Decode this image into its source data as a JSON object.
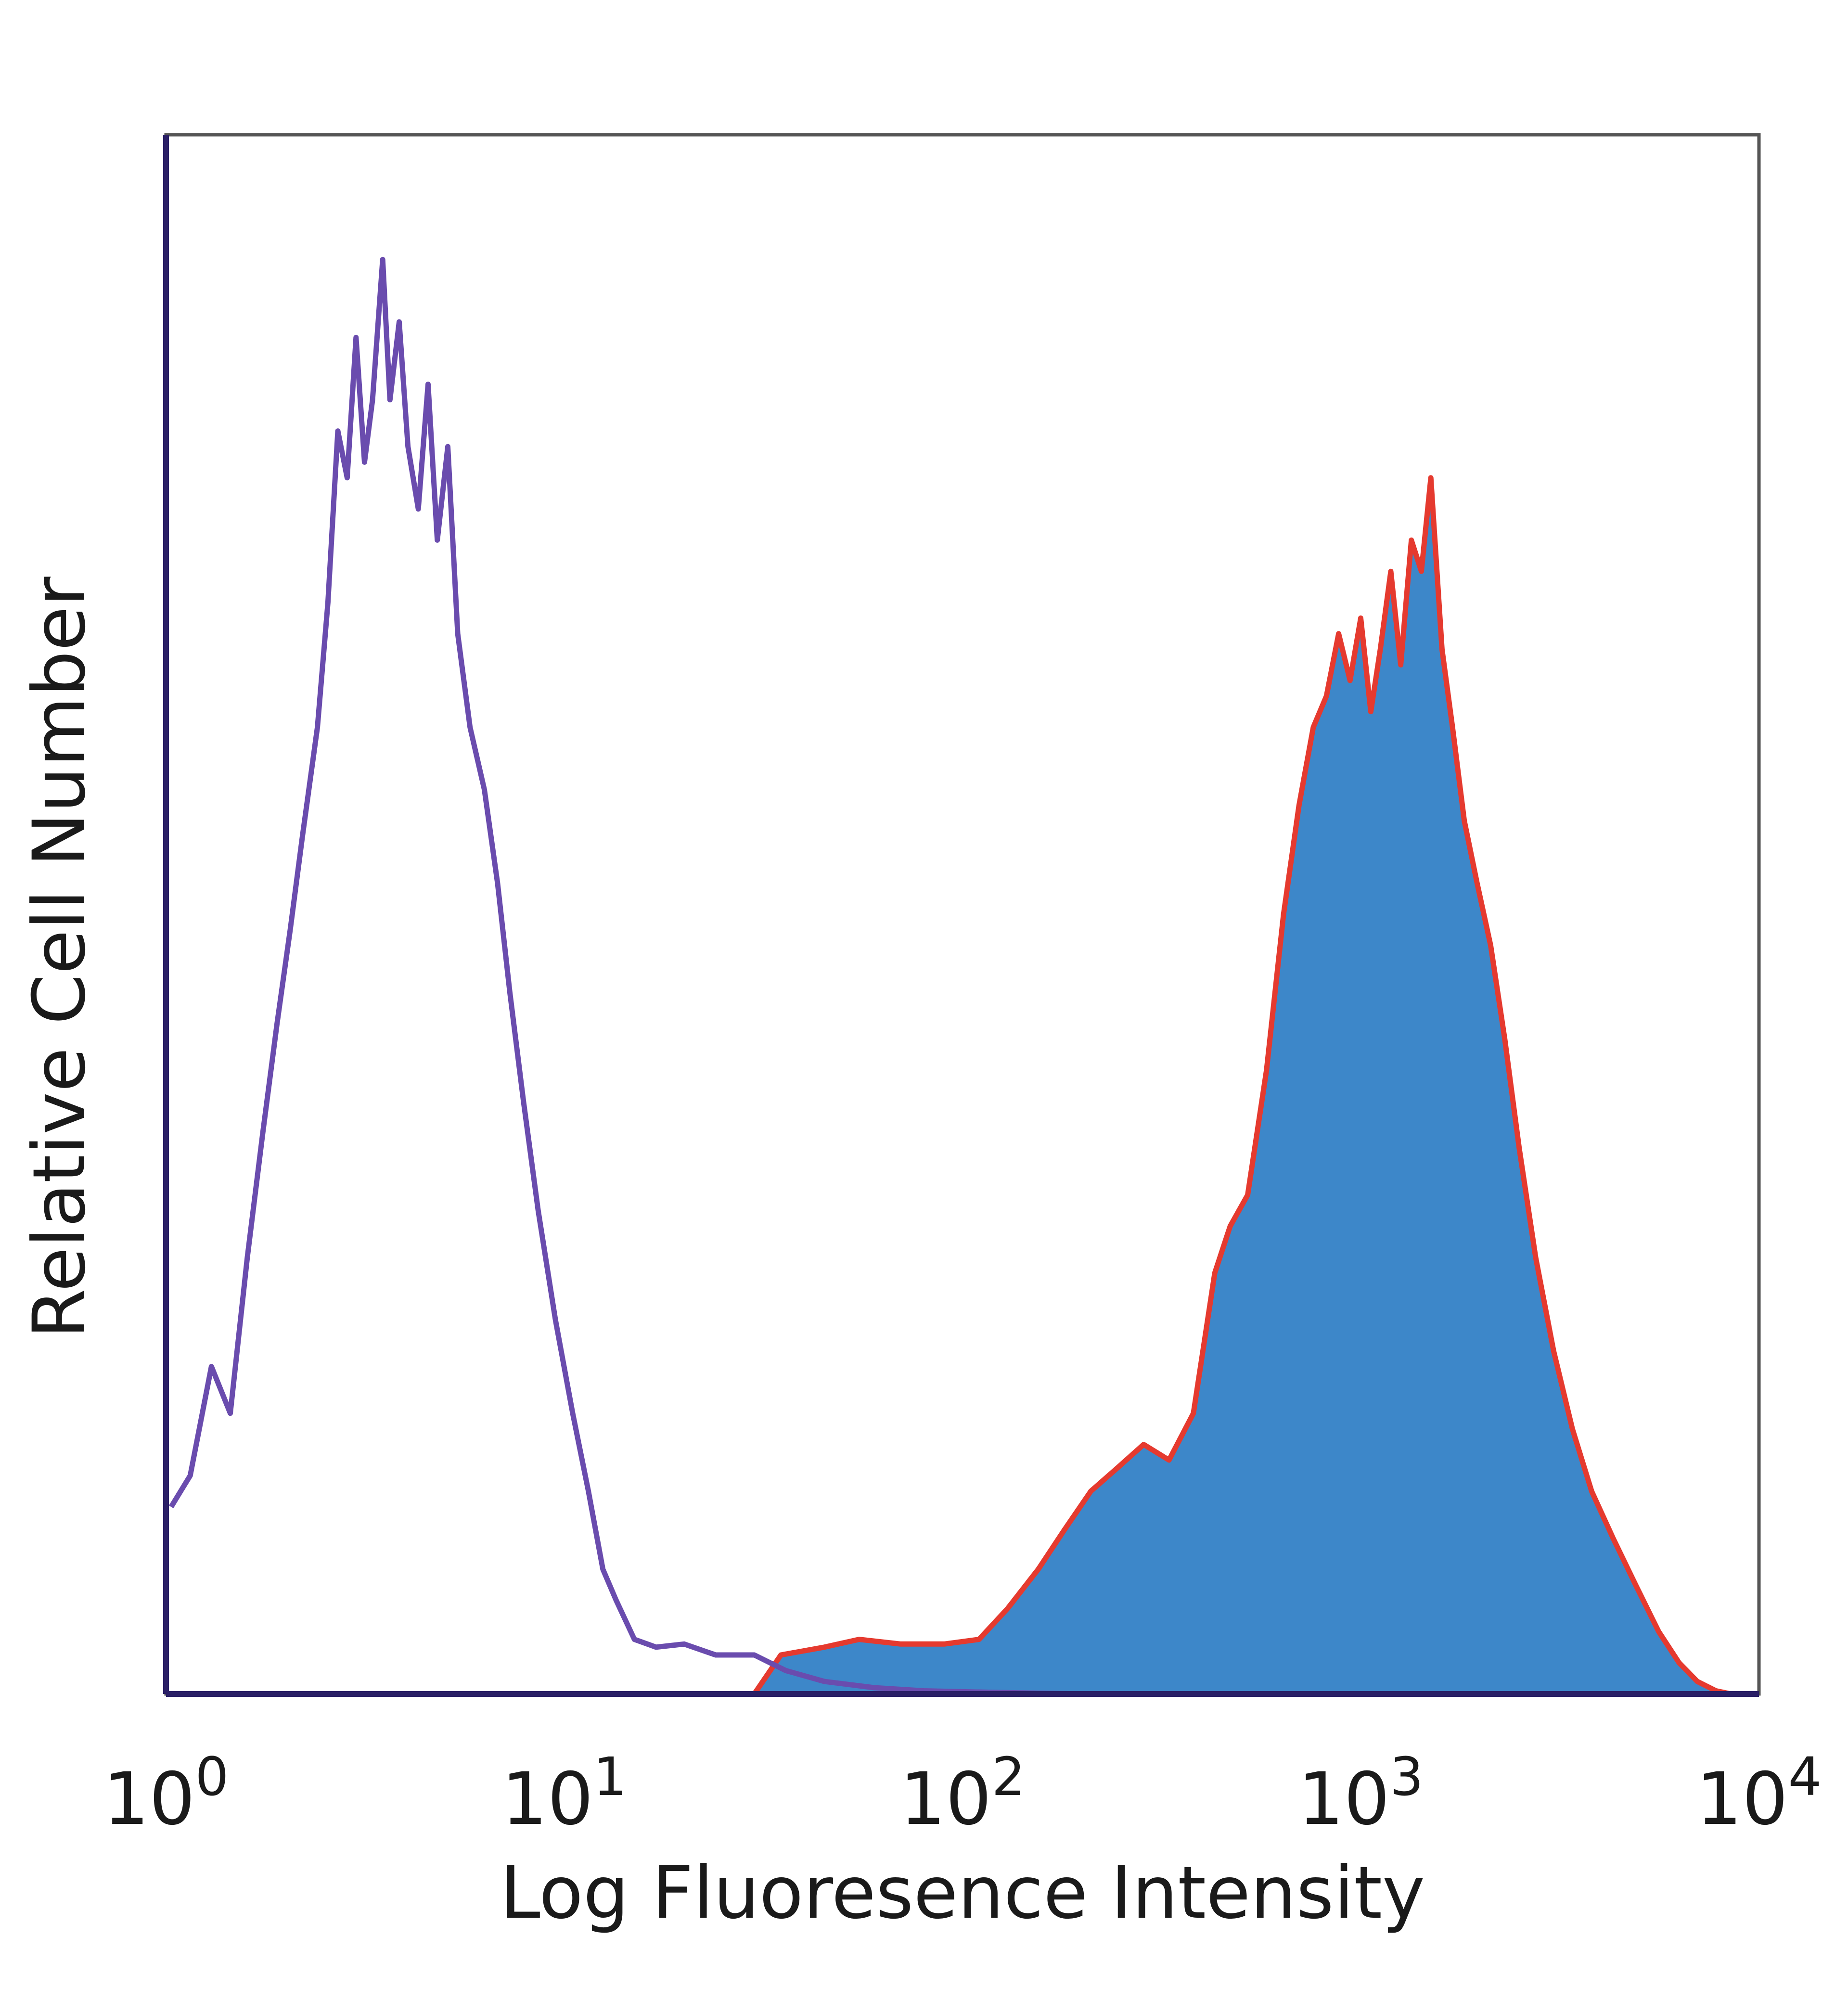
{
  "chart_data": {
    "type": "area",
    "xscale": "log",
    "xlim": [
      1,
      10000
    ],
    "ylim": [
      0,
      100
    ],
    "xlabel": "Log Fluoresence Intensity",
    "ylabel": "Relative Cell Number",
    "grid": false,
    "xticks": [
      {
        "base": "10",
        "exp": "0",
        "value": 1
      },
      {
        "base": "10",
        "exp": "1",
        "value": 10
      },
      {
        "base": "10",
        "exp": "2",
        "value": 100
      },
      {
        "base": "10",
        "exp": "3",
        "value": 1000
      },
      {
        "base": "10",
        "exp": "4",
        "value": 10000
      }
    ],
    "series": [
      {
        "color": "#6a4cae",
        "fill": "none",
        "points": [
          [
            1.03,
            12
          ],
          [
            1.15,
            14
          ],
          [
            1.3,
            21
          ],
          [
            1.45,
            18
          ],
          [
            1.6,
            28
          ],
          [
            1.75,
            36
          ],
          [
            1.9,
            43
          ],
          [
            2.05,
            49
          ],
          [
            2.2,
            55
          ],
          [
            2.4,
            62
          ],
          [
            2.55,
            70
          ],
          [
            2.7,
            81
          ],
          [
            2.85,
            78
          ],
          [
            3.0,
            87
          ],
          [
            3.15,
            79
          ],
          [
            3.3,
            83
          ],
          [
            3.5,
            92
          ],
          [
            3.65,
            83
          ],
          [
            3.85,
            88
          ],
          [
            4.05,
            80
          ],
          [
            4.3,
            76
          ],
          [
            4.55,
            84
          ],
          [
            4.8,
            74
          ],
          [
            5.1,
            80
          ],
          [
            5.4,
            68
          ],
          [
            5.8,
            62
          ],
          [
            6.3,
            58
          ],
          [
            6.8,
            52
          ],
          [
            7.3,
            45
          ],
          [
            7.9,
            38
          ],
          [
            8.6,
            31
          ],
          [
            9.5,
            24
          ],
          [
            10.5,
            18
          ],
          [
            11.5,
            13
          ],
          [
            12.5,
            8
          ],
          [
            13.5,
            6
          ],
          [
            15,
            3.5
          ],
          [
            17,
            3
          ],
          [
            20,
            3.2
          ],
          [
            24,
            2.5
          ],
          [
            30,
            2.5
          ],
          [
            36,
            1.5
          ],
          [
            45,
            0.8
          ],
          [
            60,
            0.4
          ],
          [
            80,
            0.2
          ],
          [
            120,
            0.1
          ],
          [
            200,
            0
          ],
          [
            10000,
            0
          ]
        ]
      },
      {
        "color": "#e53a2f",
        "fill": "#3d87c9",
        "points": [
          [
            1.0,
            0
          ],
          [
            30,
            0
          ],
          [
            35,
            2.5
          ],
          [
            45,
            3
          ],
          [
            55,
            3.5
          ],
          [
            70,
            3.2
          ],
          [
            90,
            3.2
          ],
          [
            110,
            3.5
          ],
          [
            130,
            5.5
          ],
          [
            155,
            8
          ],
          [
            180,
            10.5
          ],
          [
            210,
            13
          ],
          [
            245,
            14.5
          ],
          [
            285,
            16
          ],
          [
            330,
            15
          ],
          [
            380,
            18
          ],
          [
            430,
            27
          ],
          [
            470,
            30
          ],
          [
            520,
            32
          ],
          [
            580,
            40
          ],
          [
            640,
            50
          ],
          [
            700,
            57
          ],
          [
            760,
            62
          ],
          [
            820,
            64
          ],
          [
            880,
            68
          ],
          [
            940,
            65
          ],
          [
            1000,
            69
          ],
          [
            1060,
            63
          ],
          [
            1120,
            67
          ],
          [
            1190,
            72
          ],
          [
            1260,
            66
          ],
          [
            1340,
            74
          ],
          [
            1420,
            72
          ],
          [
            1500,
            78
          ],
          [
            1600,
            67
          ],
          [
            1700,
            62
          ],
          [
            1820,
            56
          ],
          [
            1960,
            52
          ],
          [
            2120,
            48
          ],
          [
            2300,
            42
          ],
          [
            2500,
            35
          ],
          [
            2750,
            28
          ],
          [
            3050,
            22
          ],
          [
            3400,
            17
          ],
          [
            3800,
            13
          ],
          [
            4300,
            10
          ],
          [
            4900,
            7
          ],
          [
            5600,
            4
          ],
          [
            6300,
            2
          ],
          [
            7000,
            0.8
          ],
          [
            7800,
            0.2
          ],
          [
            8500,
            0
          ]
        ]
      }
    ]
  }
}
